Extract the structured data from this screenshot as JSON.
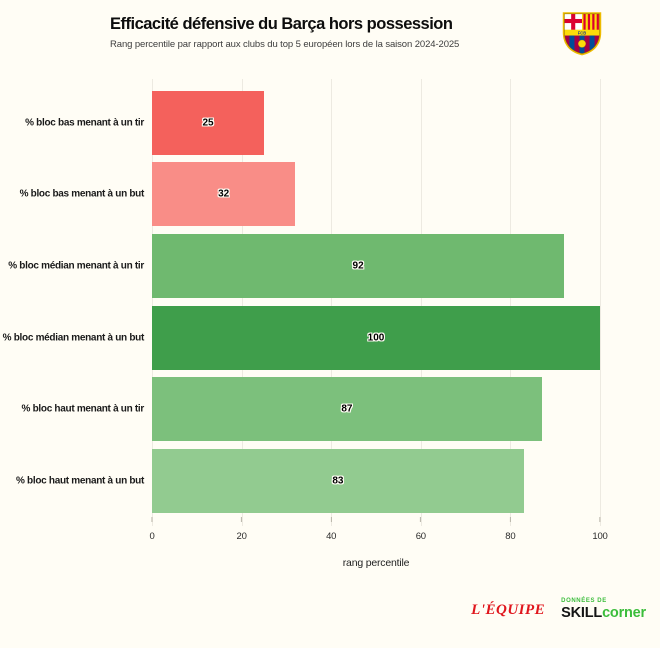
{
  "header": {
    "title": "Efficacité défensive du Barça hors possession",
    "subtitle": "Rang percentile par rapport aux clubs du top 5 européen lors de la saison 2024-2025",
    "club_logo": "fc-barcelona-crest"
  },
  "chart_data": {
    "type": "bar",
    "orientation": "horizontal",
    "title": "Efficacité défensive du Barça hors possession",
    "subtitle": "Rang percentile par rapport aux clubs du top 5 européen lors de la saison 2024-2025",
    "categories": [
      "% bloc bas menant à un tir",
      "% bloc bas menant à un but",
      "% bloc médian menant à un tir",
      "% bloc médian menant à un but",
      "% bloc haut menant à un tir",
      "% bloc haut menant à un but"
    ],
    "values": [
      25,
      32,
      92,
      100,
      87,
      83
    ],
    "bar_colors": [
      "#f4615c",
      "#f98d87",
      "#6fb96f",
      "#3f9e4b",
      "#7cc07c",
      "#92cb90"
    ],
    "xlabel": "rang percentile",
    "ylabel": "",
    "x_ticks": [
      0,
      20,
      40,
      60,
      80,
      100
    ],
    "xlim": [
      0,
      100
    ],
    "grid": "vertical-only",
    "legend": "none",
    "value_labels": "centered-in-bar"
  },
  "footer": {
    "lequipe_logo_text": "L'ÉQUIPE",
    "provider_prefix": "DONNÉES DE",
    "provider_name_black": "SKILL",
    "provider_name_green": "corner"
  },
  "colors": {
    "background": "#fffdf5",
    "gridline": "#edeae1",
    "negative_strong": "#f4615c",
    "negative_light": "#f98d87",
    "positive_strong": "#3f9e4b",
    "positive_light": "#92cb90",
    "lequipe_red": "#e0161d",
    "skillcorner_green": "#3bbd3b"
  }
}
